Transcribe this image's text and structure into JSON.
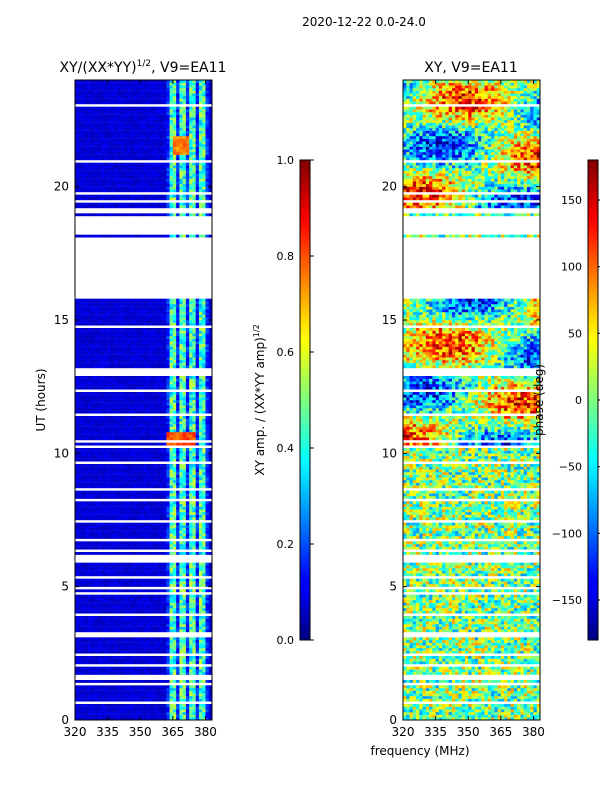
{
  "figure": {
    "suptitle": "2020-12-22 0.0-24.0"
  },
  "chart_data": [
    {
      "type": "heatmap",
      "title": "XY/(XX*YY)",
      "title_superscript": "1/2",
      "title_suffix": ", V9=EA11",
      "xlabel": "",
      "ylabel": "UT (hours)",
      "xlim": [
        320,
        383
      ],
      "ylim": [
        0,
        24
      ],
      "xticks": [
        320,
        335,
        350,
        365,
        380
      ],
      "yticks": [
        0,
        5,
        10,
        15,
        20
      ],
      "colorbar": {
        "label": "XY amp. / (XX*YY amp)",
        "label_superscript": "1/2",
        "range": [
          0.0,
          1.0
        ],
        "ticks": [
          "0.0",
          "0.2",
          "0.4",
          "0.6",
          "0.8",
          "1.0"
        ],
        "colormap": "jet"
      },
      "notes": "Mostly low amplitude (~0.05-0.1) across 320-360 MHz; brighter vertical stripes (~0.3-0.6) between ~362 and ~381 MHz; peaks (~0.8) near 10.3 h and ~21.5 h around 365-375 MHz; missing data rows (white) around 16-19 h and many thin gaps below 10 h."
    },
    {
      "type": "heatmap",
      "title": "XY, V9=EA11",
      "xlabel": "frequency (MHz)",
      "ylabel": "",
      "xlim": [
        320,
        383
      ],
      "ylim": [
        0,
        24
      ],
      "xticks": [
        320,
        335,
        350,
        365,
        380
      ],
      "yticks": [
        0,
        5,
        10,
        15,
        20
      ],
      "colorbar": {
        "label": "phase (deg)",
        "range": [
          -180,
          180
        ],
        "ticks": [
          "150",
          "100",
          "50",
          "0",
          "−50",
          "−100",
          "−150"
        ],
        "colormap": "jet"
      },
      "notes": "Phase noise, mostly cyan-yellow (-50 to +50 deg) below 10 h; structured orange/red and blue patches between 10-15 h and 19-24 h; missing data around 16-19 h."
    }
  ],
  "colors": {
    "jet_low": "#00007f",
    "jet_mid": "#7fff7f",
    "jet_high": "#7f0000"
  }
}
